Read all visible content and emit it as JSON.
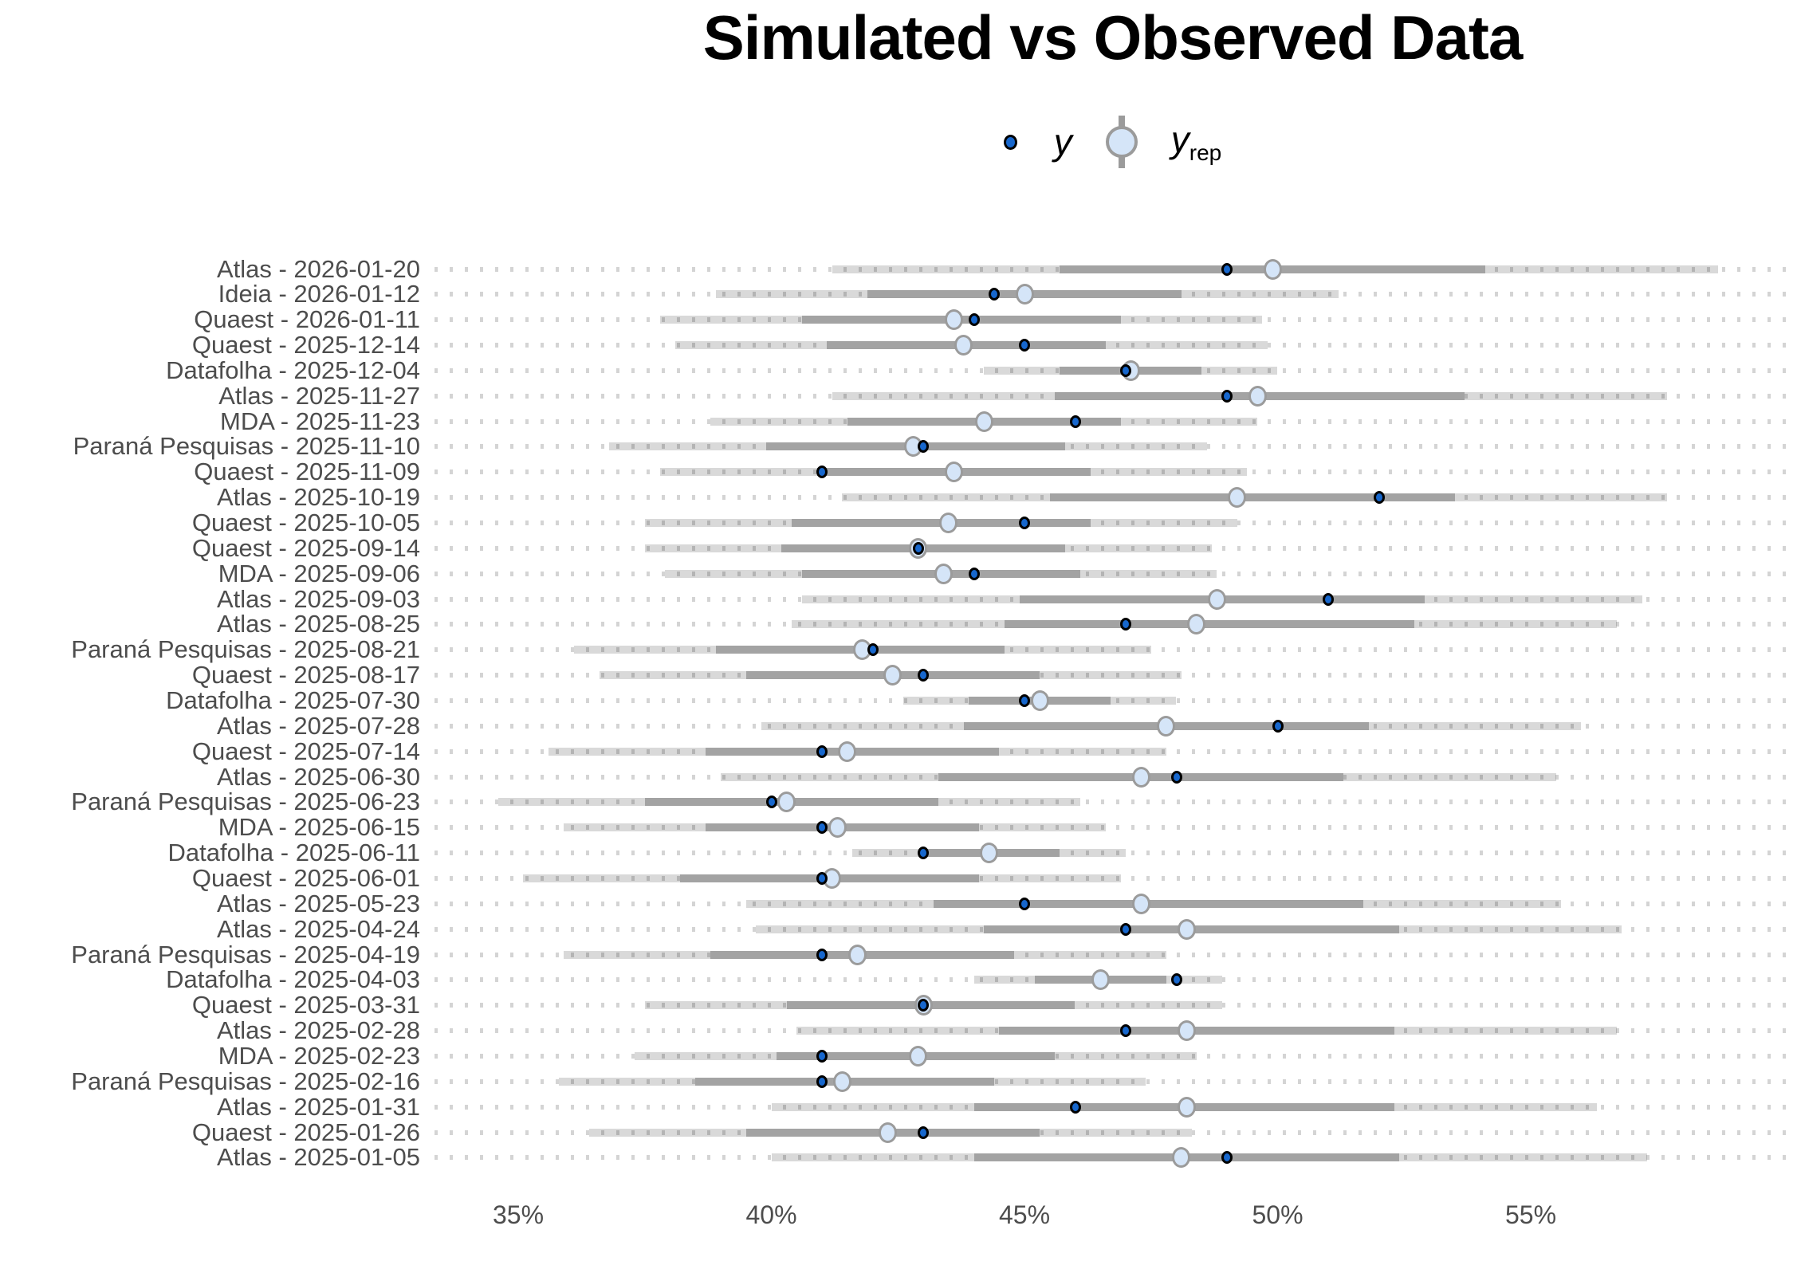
{
  "title": "Simulated vs Observed Data",
  "legend": {
    "y_label": "y",
    "yrep_base": "y",
    "yrep_sub": "rep"
  },
  "chart_data": {
    "type": "interval",
    "orientation": "horizontal",
    "title": "Simulated vs Observed Data",
    "xlabel": "",
    "ylabel": "",
    "x_unit": "percent",
    "x_ticks": [
      35,
      40,
      45,
      50,
      55
    ],
    "x_tick_labels": [
      "35%",
      "40%",
      "45%",
      "50%",
      "55%"
    ],
    "x_range": [
      33.4,
      60.2
    ],
    "grid": "dotted-row-guides",
    "legend_position": "top-center",
    "series": [
      {
        "name": "y",
        "style": "small-dark-blue-point"
      },
      {
        "name": "y_rep",
        "style": "light-blue-point-with-inner-and-outer-interval"
      }
    ],
    "rows": [
      {
        "label": "Atlas - 2026-01-20",
        "outer": [
          41.2,
          58.7
        ],
        "inner": [
          45.7,
          54.1
        ],
        "y_rep": 49.9,
        "y": 49.0
      },
      {
        "label": "Ideia - 2026-01-12",
        "outer": [
          38.9,
          51.2
        ],
        "inner": [
          41.9,
          48.1
        ],
        "y_rep": 45.0,
        "y": 44.4
      },
      {
        "label": "Quaest - 2026-01-11",
        "outer": [
          37.8,
          49.7
        ],
        "inner": [
          40.6,
          46.9
        ],
        "y_rep": 43.6,
        "y": 44.0
      },
      {
        "label": "Quaest - 2025-12-14",
        "outer": [
          38.1,
          49.8
        ],
        "inner": [
          41.1,
          46.6
        ],
        "y_rep": 43.8,
        "y": 45.0
      },
      {
        "label": "Datafolha - 2025-12-04",
        "outer": [
          44.2,
          50.0
        ],
        "inner": [
          45.7,
          48.5
        ],
        "y_rep": 47.1,
        "y": 47.0
      },
      {
        "label": "Atlas - 2025-11-27",
        "outer": [
          41.2,
          57.7
        ],
        "inner": [
          45.6,
          53.7
        ],
        "y_rep": 49.6,
        "y": 49.0
      },
      {
        "label": "MDA - 2025-11-23",
        "outer": [
          38.8,
          49.6
        ],
        "inner": [
          41.5,
          46.9
        ],
        "y_rep": 44.2,
        "y": 46.0
      },
      {
        "label": "Paraná Pesquisas - 2025-11-10",
        "outer": [
          36.8,
          48.6
        ],
        "inner": [
          39.9,
          45.8
        ],
        "y_rep": 42.8,
        "y": 43.0
      },
      {
        "label": "Quaest - 2025-11-09",
        "outer": [
          37.8,
          49.4
        ],
        "inner": [
          40.9,
          46.3
        ],
        "y_rep": 43.6,
        "y": 41.0
      },
      {
        "label": "Atlas - 2025-10-19",
        "outer": [
          41.4,
          57.7
        ],
        "inner": [
          45.5,
          53.5
        ],
        "y_rep": 49.2,
        "y": 52.0
      },
      {
        "label": "Quaest - 2025-10-05",
        "outer": [
          37.5,
          49.2
        ],
        "inner": [
          40.4,
          46.3
        ],
        "y_rep": 43.5,
        "y": 45.0
      },
      {
        "label": "Quaest - 2025-09-14",
        "outer": [
          37.5,
          48.7
        ],
        "inner": [
          40.2,
          45.8
        ],
        "y_rep": 42.9,
        "y": 42.9
      },
      {
        "label": "MDA - 2025-09-06",
        "outer": [
          37.9,
          48.8
        ],
        "inner": [
          40.6,
          46.1
        ],
        "y_rep": 43.4,
        "y": 44.0
      },
      {
        "label": "Atlas - 2025-09-03",
        "outer": [
          40.6,
          57.2
        ],
        "inner": [
          44.9,
          52.9
        ],
        "y_rep": 48.8,
        "y": 51.0
      },
      {
        "label": "Atlas - 2025-08-25",
        "outer": [
          40.4,
          56.7
        ],
        "inner": [
          44.6,
          52.7
        ],
        "y_rep": 48.4,
        "y": 47.0
      },
      {
        "label": "Paraná Pesquisas - 2025-08-21",
        "outer": [
          36.1,
          47.5
        ],
        "inner": [
          38.9,
          44.6
        ],
        "y_rep": 41.8,
        "y": 42.0
      },
      {
        "label": "Quaest - 2025-08-17",
        "outer": [
          36.6,
          48.1
        ],
        "inner": [
          39.5,
          45.3
        ],
        "y_rep": 42.4,
        "y": 43.0
      },
      {
        "label": "Datafolha - 2025-07-30",
        "outer": [
          42.6,
          48.0
        ],
        "inner": [
          43.9,
          46.7
        ],
        "y_rep": 45.3,
        "y": 45.0
      },
      {
        "label": "Atlas - 2025-07-28",
        "outer": [
          39.8,
          56.0
        ],
        "inner": [
          43.8,
          51.8
        ],
        "y_rep": 47.8,
        "y": 50.0
      },
      {
        "label": "Quaest - 2025-07-14",
        "outer": [
          35.6,
          47.8
        ],
        "inner": [
          38.7,
          44.5
        ],
        "y_rep": 41.5,
        "y": 41.0
      },
      {
        "label": "Atlas - 2025-06-30",
        "outer": [
          39.0,
          55.5
        ],
        "inner": [
          43.3,
          51.3
        ],
        "y_rep": 47.3,
        "y": 48.0
      },
      {
        "label": "Paraná Pesquisas - 2025-06-23",
        "outer": [
          34.6,
          46.1
        ],
        "inner": [
          37.5,
          43.3
        ],
        "y_rep": 40.3,
        "y": 40.0
      },
      {
        "label": "MDA - 2025-06-15",
        "outer": [
          35.9,
          46.6
        ],
        "inner": [
          38.7,
          44.1
        ],
        "y_rep": 41.3,
        "y": 41.0
      },
      {
        "label": "Datafolha - 2025-06-11",
        "outer": [
          41.6,
          47.0
        ],
        "inner": [
          43.0,
          45.7
        ],
        "y_rep": 44.3,
        "y": 43.0
      },
      {
        "label": "Quaest - 2025-06-01",
        "outer": [
          35.1,
          46.9
        ],
        "inner": [
          38.2,
          44.1
        ],
        "y_rep": 41.2,
        "y": 41.0
      },
      {
        "label": "Atlas - 2025-05-23",
        "outer": [
          39.5,
          55.6
        ],
        "inner": [
          43.2,
          51.7
        ],
        "y_rep": 47.3,
        "y": 45.0
      },
      {
        "label": "Atlas - 2025-04-24",
        "outer": [
          39.7,
          56.8
        ],
        "inner": [
          44.2,
          52.4
        ],
        "y_rep": 48.2,
        "y": 47.0
      },
      {
        "label": "Paraná Pesquisas - 2025-04-19",
        "outer": [
          35.9,
          47.8
        ],
        "inner": [
          38.8,
          44.8
        ],
        "y_rep": 41.7,
        "y": 41.0
      },
      {
        "label": "Datafolha - 2025-04-03",
        "outer": [
          44.0,
          48.9
        ],
        "inner": [
          45.2,
          47.8
        ],
        "y_rep": 46.5,
        "y": 48.0
      },
      {
        "label": "Quaest - 2025-03-31",
        "outer": [
          37.5,
          48.9
        ],
        "inner": [
          40.3,
          46.0
        ],
        "y_rep": 43.0,
        "y": 43.0
      },
      {
        "label": "Atlas - 2025-02-28",
        "outer": [
          40.5,
          56.7
        ],
        "inner": [
          44.5,
          52.3
        ],
        "y_rep": 48.2,
        "y": 47.0
      },
      {
        "label": "MDA - 2025-02-23",
        "outer": [
          37.3,
          48.4
        ],
        "inner": [
          40.1,
          45.6
        ],
        "y_rep": 42.9,
        "y": 41.0
      },
      {
        "label": "Paraná Pesquisas - 2025-02-16",
        "outer": [
          35.8,
          47.4
        ],
        "inner": [
          38.5,
          44.4
        ],
        "y_rep": 41.4,
        "y": 41.0
      },
      {
        "label": "Atlas - 2025-01-31",
        "outer": [
          40.0,
          56.3
        ],
        "inner": [
          44.0,
          52.3
        ],
        "y_rep": 48.2,
        "y": 46.0
      },
      {
        "label": "Quaest - 2025-01-26",
        "outer": [
          36.4,
          48.3
        ],
        "inner": [
          39.5,
          45.3
        ],
        "y_rep": 42.3,
        "y": 43.0
      },
      {
        "label": "Atlas - 2025-01-05",
        "outer": [
          40.0,
          57.3
        ],
        "inner": [
          44.0,
          52.4
        ],
        "y_rep": 48.1,
        "y": 49.0
      }
    ],
    "colors": {
      "y_point_fill": "#1767cd",
      "y_point_stroke": "#000000",
      "yrep_point_fill": "#d5e5f8",
      "yrep_point_stroke": "#9b9b9b",
      "inner_interval": "#a3a3a3",
      "outer_interval": "#d9d9d9",
      "dotted_guide": "#cfcfcf",
      "label_text": "#4d4d4d",
      "background": "#ffffff"
    }
  }
}
